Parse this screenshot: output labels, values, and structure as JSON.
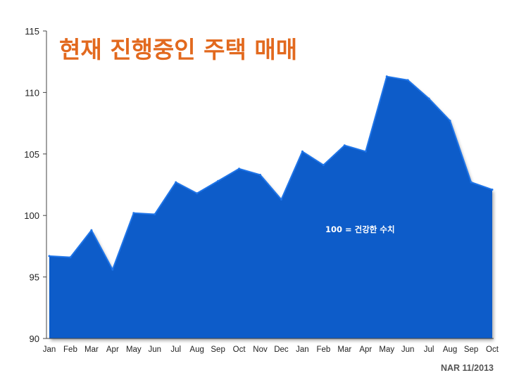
{
  "colors": {
    "title": "#e2691e",
    "area_fill": "#0a5bc9",
    "area_edge": "#1e74e8",
    "reference_line": "#c9c6b6",
    "axis": "#444444"
  },
  "chart_data": {
    "type": "area",
    "title": "현재 진행중인 주택 매매",
    "xlabel": "",
    "ylabel": "",
    "ylim": [
      90,
      115
    ],
    "yticks": [
      90,
      95,
      100,
      105,
      110,
      115
    ],
    "categories": [
      "Jan",
      "Feb",
      "Mar",
      "Apr",
      "May",
      "Jun",
      "Jul",
      "Aug",
      "Sep",
      "Oct",
      "Nov",
      "Dec",
      "Jan",
      "Feb",
      "Mar",
      "Apr",
      "May",
      "Jun",
      "Jul",
      "Aug",
      "Sep",
      "Oct"
    ],
    "series": [
      {
        "values": [
          96.7,
          96.6,
          98.8,
          95.6,
          100.2,
          100.1,
          102.7,
          101.8,
          102.8,
          103.8,
          103.3,
          101.3,
          105.2,
          104.1,
          105.7,
          105.2,
          111.3,
          111.0,
          109.5,
          107.7,
          102.7,
          102.1
        ]
      }
    ],
    "reference_line": {
      "value": 100,
      "style": "dashed",
      "label": "100 = 건강한 수치"
    },
    "grid": false,
    "legend": "none",
    "source": "NAR 11/2013"
  }
}
